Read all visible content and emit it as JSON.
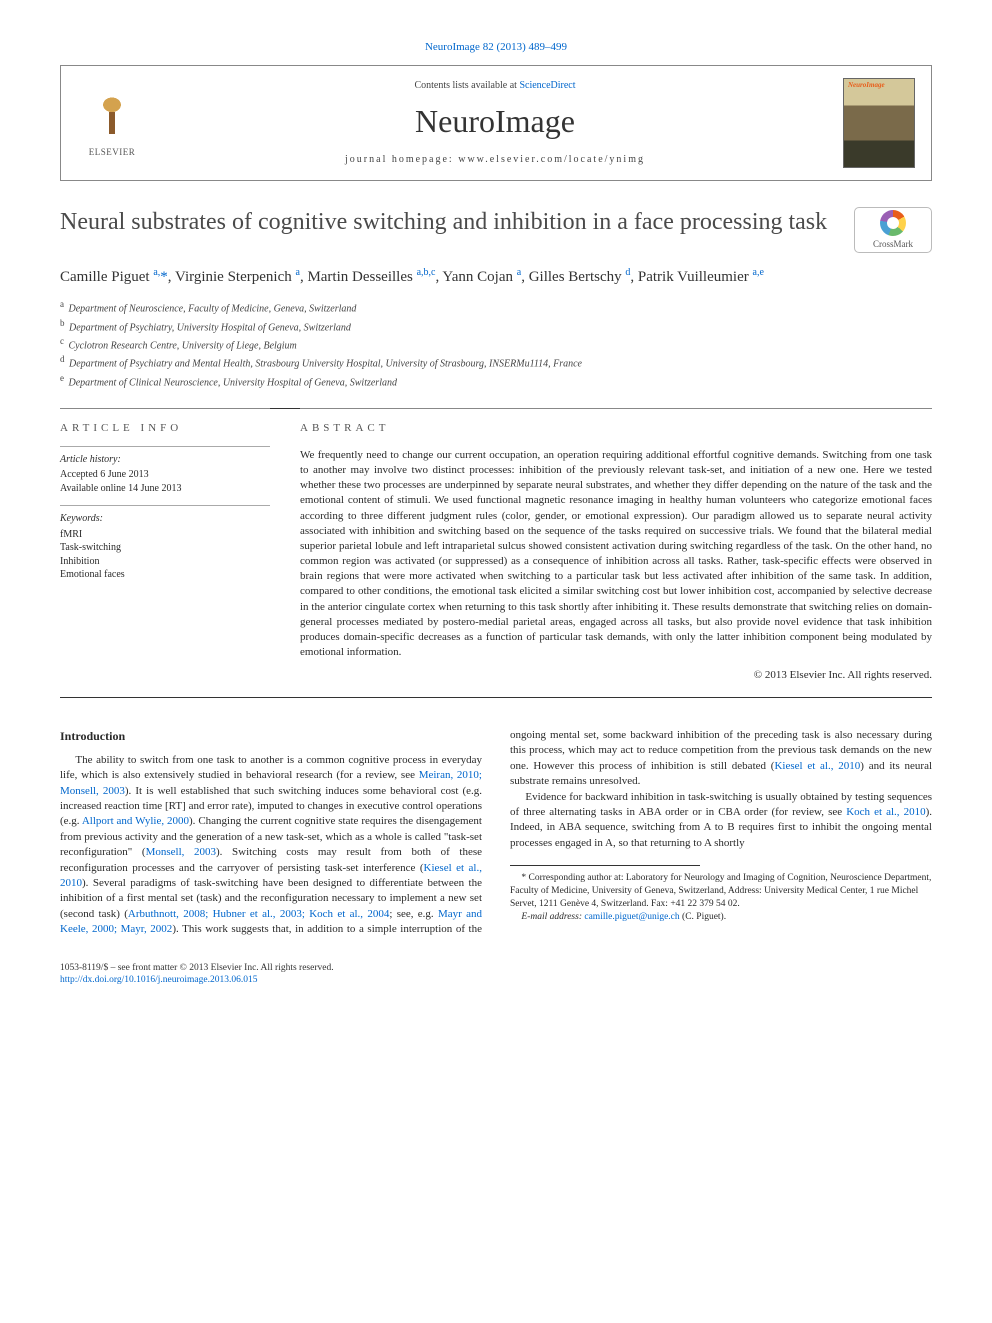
{
  "journal_ref": "NeuroImage 82 (2013) 489–499",
  "header": {
    "contents_prefix": "Contents lists available at ",
    "contents_link": "ScienceDirect",
    "journal_name": "NeuroImage",
    "homepage_prefix": "journal homepage: ",
    "homepage": "www.elsevier.com/locate/ynimg",
    "publisher": "ELSEVIER"
  },
  "crossmark_label": "CrossMark",
  "title": "Neural substrates of cognitive switching and inhibition in a face processing task",
  "authors_html": "Camille Piguet <sup>a,</sup><span class='star'>*</span>, Virginie Sterpenich <sup>a</sup>, Martin Desseilles <sup>a,b,c</sup>, Yann Cojan <sup>a</sup>, Gilles Bertschy <sup>d</sup>, Patrik Vuilleumier <sup>a,e</sup>",
  "affiliations": [
    {
      "sup": "a",
      "text": "Department of Neuroscience, Faculty of Medicine, Geneva, Switzerland"
    },
    {
      "sup": "b",
      "text": "Department of Psychiatry, University Hospital of Geneva, Switzerland"
    },
    {
      "sup": "c",
      "text": "Cyclotron Research Centre, University of Liege, Belgium"
    },
    {
      "sup": "d",
      "text": "Department of Psychiatry and Mental Health, Strasbourg University Hospital, University of Strasbourg, INSERMu1114, France"
    },
    {
      "sup": "e",
      "text": "Department of Clinical Neuroscience, University Hospital of Geneva, Switzerland"
    }
  ],
  "info": {
    "section_head": "article info",
    "history_head": "Article history:",
    "accepted": "Accepted 6 June 2013",
    "online": "Available online 14 June 2013",
    "keywords_head": "Keywords:",
    "keywords": [
      "fMRI",
      "Task-switching",
      "Inhibition",
      "Emotional faces"
    ]
  },
  "abstract": {
    "section_head": "abstract",
    "text": "We frequently need to change our current occupation, an operation requiring additional effortful cognitive demands. Switching from one task to another may involve two distinct processes: inhibition of the previously relevant task-set, and initiation of a new one. Here we tested whether these two processes are underpinned by separate neural substrates, and whether they differ depending on the nature of the task and the emotional content of stimuli. We used functional magnetic resonance imaging in healthy human volunteers who categorize emotional faces according to three different judgment rules (color, gender, or emotional expression). Our paradigm allowed us to separate neural activity associated with inhibition and switching based on the sequence of the tasks required on successive trials. We found that the bilateral medial superior parietal lobule and left intraparietal sulcus showed consistent activation during switching regardless of the task. On the other hand, no common region was activated (or suppressed) as a consequence of inhibition across all tasks. Rather, task-specific effects were observed in brain regions that were more activated when switching to a particular task but less activated after inhibition of the same task. In addition, compared to other conditions, the emotional task elicited a similar switching cost but lower inhibition cost, accompanied by selective decrease in the anterior cingulate cortex when returning to this task shortly after inhibiting it. These results demonstrate that switching relies on domain-general processes mediated by postero-medial parietal areas, engaged across all tasks, but also provide novel evidence that task inhibition produces domain-specific decreases as a function of particular task demands, with only the latter inhibition component being modulated by emotional information.",
    "copyright": "© 2013 Elsevier Inc. All rights reserved."
  },
  "body": {
    "intro_head": "Introduction",
    "p1a": "The ability to switch from one task to another is a common cognitive process in everyday life, which is also extensively studied in behavioral research (for a review, see ",
    "p1_ref1": "Meiran, 2010; Monsell, 2003",
    "p1b": "). It is well established that such switching induces some behavioral cost (e.g. increased reaction time [RT] and error rate), imputed to changes in executive control operations (e.g. ",
    "p1_ref2": "Allport and Wylie, 2000",
    "p1c": "). Changing the current cognitive state requires the disengagement from previous activity and the generation of a new task-set, which as a whole is called \"task-set reconfiguration\" (",
    "p1_ref3": "Monsell, 2003",
    "p1d": "). Switching costs may result from both of these reconfiguration processes and the carryover of persisting task-set interference (",
    "p1_ref4": "Kiesel et al., 2010",
    "p1e": "). Several paradigms of task-switching have been designed to differentiate between the inhibition of a first mental set (task) and the reconfiguration necessary to implement a new set (second task) (",
    "p1_ref5": "Arbuthnott, 2008; Hubner et al., 2003; Koch et al., 2004",
    "p1f": "; see, e.g. ",
    "p1_ref6": "Mayr and Keele, 2000; Mayr, 2002",
    "p1g": "). This work suggests that, in addition to a simple interruption of the ongoing mental set, some backward inhibition of the preceding task is also necessary during this process, which may act to reduce competition from the previous task demands on the new one. However this process of inhibition is still debated (",
    "p1_ref7": "Kiesel et al., 2010",
    "p1h": ") and its neural substrate remains unresolved.",
    "p2a": "Evidence for backward inhibition in task-switching is usually obtained by testing sequences of three alternating tasks in ABA order or in CBA order (for review, see ",
    "p2_ref1": "Koch et al., 2010",
    "p2b": "). Indeed, in ABA sequence, switching from A to B requires first to inhibit the ongoing mental processes engaged in A, so that returning to A shortly"
  },
  "footnotes": {
    "corr": "* Corresponding author at: Laboratory for Neurology and Imaging of Cognition, Neuroscience Department, Faculty of Medicine, University of Geneva, Switzerland, Address: University Medical Center, 1 rue Michel Servet, 1211 Genève 4, Switzerland. Fax: +41 22 379 54 02.",
    "email_label": "E-mail address: ",
    "email": "camille.piguet@unige.ch",
    "email_who": " (C. Piguet)."
  },
  "footer": {
    "left1": "1053-8119/$ – see front matter © 2013 Elsevier Inc. All rights reserved.",
    "doi": "http://dx.doi.org/10.1016/j.neuroimage.2013.06.015"
  },
  "colors": {
    "link": "#0066cc",
    "text": "#2a2a2a",
    "rule": "#333333",
    "orange": "#e85d1a"
  }
}
